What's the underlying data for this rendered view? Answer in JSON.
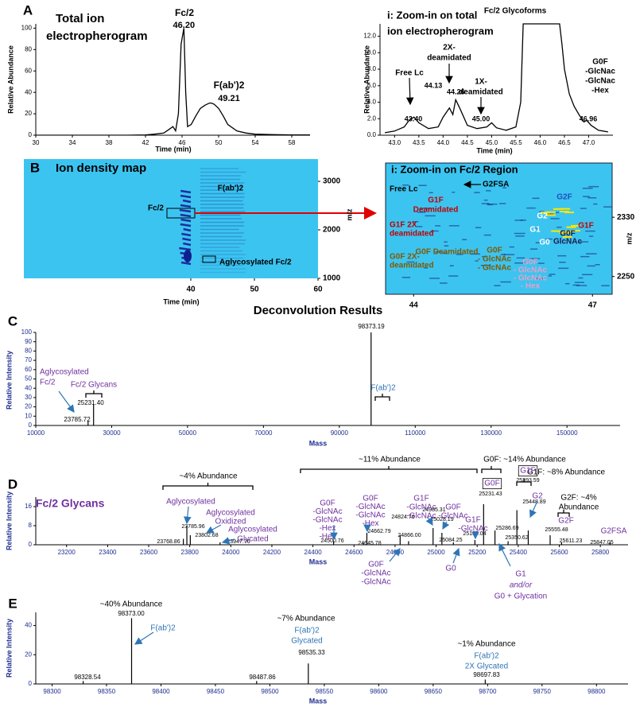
{
  "heading": "Deconvolution Results",
  "chart_data": [
    {
      "panel": "A",
      "type": "line",
      "title": [
        "Total ion",
        "electropherogram"
      ],
      "xlabel": "Time (min)",
      "ylabel": "Relative Abundance",
      "color": "#000000",
      "x": [
        30,
        32,
        34,
        36,
        38,
        40,
        42,
        43,
        44,
        44.5,
        45,
        45.3,
        45.6,
        45.9,
        46.2,
        46.4,
        46.6,
        47,
        47.5,
        48,
        48.5,
        49,
        49.21,
        49.5,
        50,
        50.5,
        51,
        52,
        53,
        54,
        56,
        58,
        60
      ],
      "values": [
        0,
        0,
        0,
        0,
        0,
        0,
        0.3,
        1,
        2,
        5,
        8,
        4,
        20,
        85,
        100,
        40,
        8,
        10,
        18,
        25,
        28,
        30,
        30,
        29,
        25,
        18,
        10,
        4,
        2,
        1,
        0.5,
        0.3,
        0.2
      ],
      "xlim": [
        30,
        60
      ],
      "ylim": [
        0,
        104
      ],
      "xticks": [
        30,
        34,
        38,
        42,
        46,
        50,
        54,
        58
      ],
      "yticks": [
        0,
        20,
        40,
        60,
        80,
        100
      ],
      "peak_labels": [
        {
          "value": 46.2,
          "label": "46.20"
        },
        {
          "value": 49.21,
          "label": "49.21"
        }
      ],
      "annotations": [
        {
          "lines": [
            "Fc/2"
          ],
          "color": "#000000"
        },
        {
          "lines": [
            "F(ab')2"
          ],
          "color": "#000000"
        }
      ]
    },
    {
      "type": "line",
      "title": [
        "i: Zoom-in on total",
        "ion electropherogram"
      ],
      "xlabel": "Time (min)",
      "ylabel": "Relative Abundance",
      "color": "#000000",
      "x": [
        42.8,
        43.0,
        43.2,
        43.3,
        43.4,
        43.5,
        43.7,
        43.9,
        44.0,
        44.13,
        44.2,
        44.26,
        44.35,
        44.5,
        44.7,
        44.9,
        45.0,
        45.1,
        45.3,
        45.5,
        45.6,
        45.65,
        45.7,
        46.4,
        46.45,
        46.5,
        46.6,
        46.7,
        46.8,
        46.9,
        46.96,
        47.05,
        47.2,
        47.4
      ],
      "values": [
        0.3,
        0.5,
        1,
        1.8,
        2.2,
        1.5,
        0.8,
        1.0,
        2.2,
        3.3,
        2.5,
        4.3,
        3.2,
        1.2,
        0.8,
        1.0,
        1.5,
        0.9,
        0.6,
        1.0,
        4,
        13.5,
        13.5,
        13.5,
        11,
        8,
        5,
        3.5,
        2.5,
        1.6,
        1.8,
        1.2,
        0.6,
        0.4
      ],
      "xlim": [
        42.7,
        47.5
      ],
      "ylim": [
        0,
        13.5
      ],
      "xticks": [
        {
          "value": 43,
          "label": "43.0"
        },
        {
          "value": 43.5,
          "label": "43.5"
        },
        {
          "value": 44,
          "label": "44.0"
        },
        {
          "value": 44.5,
          "label": "44.5"
        },
        {
          "value": 45,
          "label": "45.0"
        },
        {
          "value": 45.5,
          "label": "45.5"
        },
        {
          "value": 46,
          "label": "46.0"
        },
        {
          "value": 46.5,
          "label": "46.5"
        },
        {
          "value": 47,
          "label": "47.0"
        }
      ],
      "yticks": [
        {
          "value": 0,
          "label": "0.0"
        },
        {
          "value": 2,
          "label": "2.0"
        },
        {
          "value": 4,
          "label": "4.0"
        },
        {
          "value": 6,
          "label": "6.0"
        },
        {
          "value": 8,
          "label": "8.0"
        },
        {
          "value": 10,
          "label": "10.0"
        },
        {
          "value": 12,
          "label": "12.0"
        }
      ],
      "peak_labels": [
        {
          "value": 43.4,
          "label": "43.40"
        },
        {
          "value": 44.13,
          "label": "44.13"
        },
        {
          "value": 44.26,
          "label": "44.26"
        },
        {
          "value": 45.0,
          "label": "45.00"
        },
        {
          "value": 46.96,
          "label": "46.96"
        }
      ],
      "annotations": [
        {
          "lines": [
            "Free Lc"
          ],
          "color": "#000000"
        },
        {
          "lines": [
            "2X-",
            "deamidated"
          ],
          "color": "#000000"
        },
        {
          "lines": [
            "1X-",
            "deamidated"
          ],
          "color": "#000000"
        },
        {
          "lines": [
            "Fc/2 Glycoforms"
          ],
          "color": "#000000"
        },
        {
          "lines": [
            "G0F",
            "-GlcNac",
            "-GlcNac",
            "-Hex"
          ],
          "color": "#000000"
        }
      ]
    },
    {
      "panel": "B",
      "type": "heatmap",
      "title": "Ion density map",
      "xlabel": "Time (min)",
      "ylabel": "m/z",
      "xlim": [
        13.75,
        60
      ],
      "ylim": [
        1000,
        3460
      ],
      "xticks": [
        40,
        50,
        60
      ],
      "yticks": [
        1000,
        2000,
        3000
      ],
      "annotations": [
        {
          "lines": [
            "Fc/2"
          ],
          "color": "#000000"
        },
        {
          "lines": [
            "F(ab')2"
          ],
          "color": "#000000"
        },
        {
          "lines": [
            "Aglycosylated  Fc/2"
          ],
          "color": "#000000"
        }
      ]
    },
    {
      "type": "heatmap",
      "title": "i: Zoom-in  on Fc/2  Region",
      "ylabel": "m/z",
      "xlim": [
        43.53,
        47.33
      ],
      "ylim": [
        2226,
        2385
      ],
      "xticks": [
        44,
        47
      ],
      "yticks": [
        2250,
        2330
      ],
      "annotations": [
        {
          "lines": [
            "Free Lc"
          ],
          "color": "#000000"
        },
        {
          "lines": [
            "G2FSA"
          ],
          "color": "#000000"
        },
        {
          "lines": [
            "G1F",
            "Deamidated"
          ],
          "color": "#c00000"
        },
        {
          "lines": [
            "G2F"
          ],
          "color": "#1f4fbf"
        },
        {
          "lines": [
            "G2"
          ],
          "color": "#ffffff"
        },
        {
          "lines": [
            "G1F"
          ],
          "color": "#c00000"
        },
        {
          "lines": [
            "G1F 2X",
            "deamidated"
          ],
          "color": "#c00000"
        },
        {
          "lines": [
            "G1"
          ],
          "color": "#ffffff"
        },
        {
          "lines": [
            "G0"
          ],
          "color": "#ffffff"
        },
        {
          "lines": [
            "G0F",
            "GlcNAc"
          ],
          "color": "#1a1a4a"
        },
        {
          "lines": [
            "G0F 2X-",
            "deamidated"
          ],
          "color": "#7f5a00"
        },
        {
          "lines": [
            "G0F Deamidated"
          ],
          "color": "#7f5a00"
        },
        {
          "lines": [
            "G0F",
            "- GlcNAc",
            "- GlcNAc"
          ],
          "color": "#7f5a00"
        },
        {
          "lines": [
            "G0F",
            "- GlcNAc",
            "- GlcNAc",
            "- Hex"
          ],
          "color": "#e8a0c8"
        }
      ]
    },
    {
      "panel": "C",
      "type": "spectrum",
      "xlabel": "Mass",
      "ylabel": "Relative Intensity",
      "color": "#000000",
      "x": [
        23785.72,
        25231.4,
        98373.19
      ],
      "values": [
        5,
        23,
        100
      ],
      "x_labels": [
        "23785.72",
        "25231.40",
        "98373.19"
      ],
      "xlim": [
        10000,
        164000
      ],
      "ylim": [
        0,
        100
      ],
      "xticks": [
        10000,
        30000,
        50000,
        70000,
        90000,
        110000,
        130000,
        150000
      ],
      "yticks": [
        0,
        10,
        20,
        30,
        40,
        50,
        60,
        70,
        80,
        90,
        100
      ],
      "annotations": [
        {
          "lines": [
            "Aglycosylated",
            "Fc/2"
          ],
          "color": "#7030a0"
        },
        {
          "lines": [
            "Fc/2 Glycans"
          ],
          "color": "#7030a0"
        },
        {
          "lines": [
            "F(ab')2"
          ],
          "color": "#2e75b6"
        }
      ]
    },
    {
      "panel": "D",
      "type": "spectrum",
      "title": "Fc/2 Glycans",
      "xlabel": "Mass",
      "ylabel": "Relative Intensity",
      "color": "#000000",
      "x": [
        23768.86,
        23785.96,
        23802.68,
        23947.76,
        24500.76,
        24645.78,
        24662.79,
        24824.76,
        24866.0,
        24985.31,
        25028.19,
        25084.25,
        25189.04,
        25231.43,
        25286.69,
        25350.62,
        25393.59,
        25448.89,
        25555.48,
        25611.23,
        25847.05
      ],
      "values": [
        2.5,
        8,
        4,
        1,
        1.5,
        1,
        5,
        4,
        1.5,
        7,
        5,
        1,
        2,
        17,
        6,
        1.5,
        14.5,
        6,
        4,
        1,
        1
      ],
      "x_labels": [
        "23768.86",
        "23785.96",
        "23802.68",
        "23947.76",
        "24500.76",
        "24645.78",
        "24662.79",
        "24824.76",
        "24866.00",
        "24985.31",
        "25028.19",
        "25084.25",
        "25189.04",
        "25231.43",
        "25286.69",
        "25350.62",
        "25393.59",
        "25448.89",
        "25555.48",
        "25611.23",
        "25847.05"
      ],
      "xlim": [
        23050,
        25935
      ],
      "ylim": [
        0,
        20
      ],
      "xticks": [
        23200,
        23400,
        23600,
        23800,
        24000,
        24200,
        24400,
        24600,
        24800,
        25000,
        25200,
        25400,
        25600,
        25800
      ],
      "yticks": [
        0,
        8,
        16
      ],
      "annotations": [
        {
          "lines": [
            "~4% Abundance"
          ],
          "color": "#000000"
        },
        {
          "lines": [
            "~11% Abundance"
          ],
          "color": "#000000"
        },
        {
          "lines": [
            "G0F: ~14% Abundance"
          ],
          "color": "#000000"
        },
        {
          "lines": [
            "G1F: ~8% Abundance"
          ],
          "color": "#000000"
        },
        {
          "lines": [
            "G2F: ~4%",
            "Abundance"
          ],
          "color": "#000000"
        },
        {
          "lines": [
            "Aglycosylated"
          ],
          "color": "#7030a0"
        },
        {
          "lines": [
            "Aglycosylated",
            "Oxidized"
          ],
          "color": "#7030a0"
        },
        {
          "lines": [
            "Aglycosylated",
            "Glycated"
          ],
          "color": "#7030a0"
        },
        {
          "lines": [
            "G0F",
            "-GlcNAc",
            "-GlcNAc",
            "-Hex",
            "-Hex"
          ],
          "color": "#7030a0"
        },
        {
          "lines": [
            "G0F",
            "-GlcNAc",
            "-GlcNAc",
            "-Hex"
          ],
          "color": "#7030a0"
        },
        {
          "lines": [
            "G0F",
            "-GlcNAc",
            "-GlcNAc"
          ],
          "color": "#7030a0"
        },
        {
          "lines": [
            "G1F",
            "-GlcNAc",
            "-GlcNAc"
          ],
          "color": "#7030a0"
        },
        {
          "lines": [
            "G0F",
            "-GlcNAc"
          ],
          "color": "#7030a0"
        },
        {
          "lines": [
            "G1F",
            "-GlcNAc"
          ],
          "color": "#7030a0"
        },
        {
          "lines": [
            "G0"
          ],
          "color": "#7030a0"
        },
        {
          "lines": [
            "G0F"
          ],
          "color": "#7030a0"
        },
        {
          "lines": [
            "G1F"
          ],
          "color": "#7030a0"
        },
        {
          "lines": [
            "G2"
          ],
          "color": "#7030a0"
        },
        {
          "lines": [
            "G2F"
          ],
          "color": "#7030a0"
        },
        {
          "lines": [
            "G2FSA"
          ],
          "color": "#7030a0"
        },
        {
          "lines": [
            "G1",
            "and/or",
            "G0 + Glycation"
          ],
          "color": "#7030a0"
        }
      ]
    },
    {
      "panel": "E",
      "type": "spectrum",
      "xlabel": "Mass",
      "ylabel": "Relative Intensity",
      "color": "#000000",
      "x": [
        98328.54,
        98373.0,
        98487.86,
        98535.33,
        98697.83
      ],
      "values": [
        2,
        45,
        2,
        14,
        3
      ],
      "x_labels": [
        "98328.54",
        "98373.00",
        "98487.86",
        "98535.33",
        "98697.83"
      ],
      "xlim": [
        98285,
        98829
      ],
      "ylim": [
        0,
        49
      ],
      "xticks": [
        98300,
        98350,
        98400,
        98450,
        98500,
        98550,
        98600,
        98650,
        98700,
        98750,
        98800
      ],
      "yticks": [
        0,
        20,
        40
      ],
      "annotations": [
        {
          "lines": [
            "~40% Abundance"
          ],
          "color": "#000000"
        },
        {
          "lines": [
            "F(ab')2"
          ],
          "color": "#2e75b6"
        },
        {
          "lines": [
            "~7% Abundance"
          ],
          "color": "#000000"
        },
        {
          "lines": [
            "F(ab')2",
            "Glycated"
          ],
          "color": "#2e75b6"
        },
        {
          "lines": [
            "~1% Abundance"
          ],
          "color": "#000000"
        },
        {
          "lines": [
            "F(ab')2",
            "2X Glycated"
          ],
          "color": "#2e75b6"
        }
      ]
    }
  ]
}
